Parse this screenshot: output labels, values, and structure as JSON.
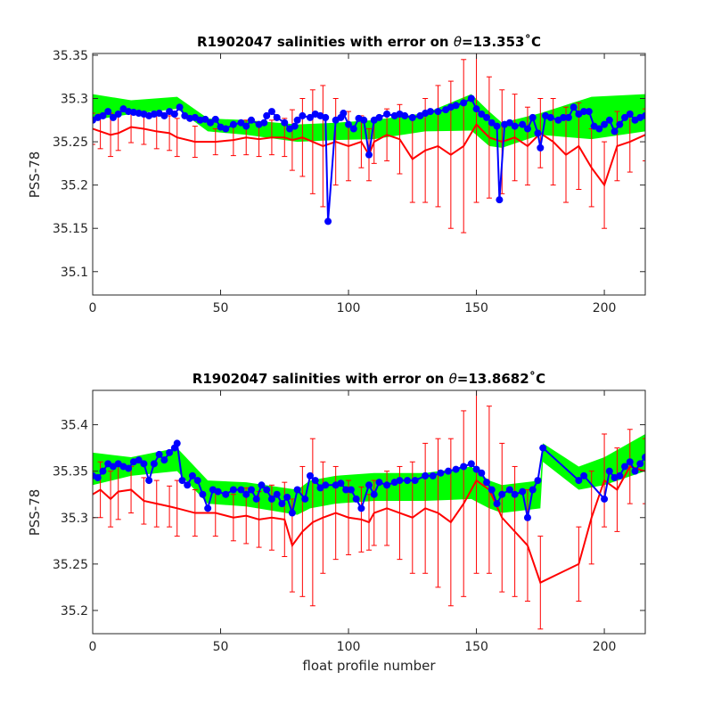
{
  "figure": {
    "xlabel": "float profile number"
  },
  "chart_data": [
    {
      "type": "line",
      "title": "R1902047 salinities with error on θ=13.353˚C",
      "title_parts": {
        "prefix": "R1902047 salinities with error on ",
        "theta": "θ",
        "suffix": "=13.353˚C"
      },
      "xlabel": "",
      "ylabel": "PSS-78",
      "xlim": [
        0,
        216
      ],
      "ylim": [
        35.073,
        35.352
      ],
      "xticks": [
        0,
        50,
        100,
        150,
        200
      ],
      "yticks": [
        35.1,
        35.15,
        35.2,
        35.25,
        35.3,
        35.35
      ],
      "ytick_labels": [
        "35.1",
        "35.15",
        "35.2",
        "35.25",
        "35.3",
        "35.35"
      ],
      "grid": false,
      "colors": {
        "mapped_band": "#00ff00",
        "float_data": "#ff0000",
        "calibrated": "#0000ff"
      },
      "series": [
        {
          "role": "mapped-band",
          "x": [
            0,
            15,
            33,
            45,
            60,
            80,
            95,
            110,
            130,
            148,
            155,
            160,
            175,
            195,
            216
          ],
          "y_low": [
            35.275,
            35.282,
            35.288,
            35.262,
            35.258,
            35.25,
            35.252,
            35.253,
            35.262,
            35.263,
            35.245,
            35.243,
            35.258,
            35.253,
            35.262
          ],
          "y_high": [
            35.305,
            35.298,
            35.302,
            35.277,
            35.275,
            35.27,
            35.272,
            35.275,
            35.283,
            35.305,
            35.285,
            35.272,
            35.283,
            35.302,
            35.305
          ]
        },
        {
          "role": "float-data",
          "x": [
            0,
            3,
            7,
            10,
            15,
            20,
            25,
            30,
            33,
            40,
            48,
            55,
            60,
            65,
            70,
            75,
            78,
            82,
            86,
            90,
            95,
            100,
            105,
            108,
            110,
            115,
            120,
            125,
            130,
            135,
            140,
            145,
            150,
            155,
            160,
            165,
            170,
            175,
            180,
            185,
            190,
            195,
            200,
            205,
            210,
            216
          ],
          "y": [
            35.265,
            35.262,
            35.258,
            35.26,
            35.267,
            35.265,
            35.262,
            35.26,
            35.255,
            35.25,
            35.25,
            35.252,
            35.255,
            35.253,
            35.255,
            35.255,
            35.252,
            35.255,
            35.25,
            35.245,
            35.25,
            35.245,
            35.25,
            35.235,
            35.25,
            35.258,
            35.253,
            35.23,
            35.24,
            35.245,
            35.235,
            35.245,
            35.27,
            35.255,
            35.25,
            35.255,
            35.245,
            35.26,
            35.25,
            35.235,
            35.245,
            35.22,
            35.2,
            35.245,
            35.25,
            35.258
          ],
          "error": [
            0.018,
            0.02,
            0.025,
            0.02,
            0.018,
            0.018,
            0.02,
            0.02,
            0.022,
            0.018,
            0.015,
            0.018,
            0.02,
            0.02,
            0.02,
            0.022,
            0.035,
            0.045,
            0.06,
            0.07,
            0.05,
            0.04,
            0.03,
            0.03,
            0.025,
            0.03,
            0.04,
            0.05,
            0.06,
            0.07,
            0.085,
            0.1,
            0.09,
            0.07,
            0.06,
            0.05,
            0.045,
            0.04,
            0.05,
            0.055,
            0.05,
            0.045,
            0.05,
            0.04,
            0.035,
            0.03
          ]
        },
        {
          "role": "calibrated",
          "x": [
            0,
            2,
            4,
            6,
            8,
            10,
            12,
            14,
            16,
            18,
            20,
            22,
            24,
            26,
            28,
            30,
            32,
            34,
            36,
            38,
            40,
            42,
            44,
            46,
            48,
            50,
            52,
            55,
            58,
            60,
            62,
            65,
            67,
            68,
            70,
            72,
            75,
            77,
            79,
            80,
            82,
            85,
            87,
            89,
            91,
            92,
            95,
            97,
            98,
            100,
            102,
            104,
            106,
            108,
            110,
            112,
            115,
            118,
            120,
            122,
            125,
            128,
            130,
            132,
            135,
            138,
            140,
            142,
            145,
            148,
            150,
            152,
            154,
            156,
            158,
            159,
            161,
            163,
            165,
            168,
            170,
            172,
            174,
            175,
            177,
            179,
            182,
            184,
            186,
            188,
            190,
            192,
            194,
            196,
            198,
            200,
            202,
            204,
            206,
            208,
            210,
            212,
            214,
            216
          ],
          "y": [
            35.275,
            35.278,
            35.28,
            35.285,
            35.278,
            35.282,
            35.288,
            35.285,
            35.284,
            35.283,
            35.282,
            35.28,
            35.282,
            35.283,
            35.28,
            35.285,
            35.282,
            35.29,
            35.28,
            35.277,
            35.278,
            35.275,
            35.276,
            35.272,
            35.276,
            35.267,
            35.265,
            35.27,
            35.272,
            35.268,
            35.275,
            35.27,
            35.272,
            35.28,
            35.285,
            35.278,
            35.272,
            35.265,
            35.268,
            35.275,
            35.28,
            35.278,
            35.282,
            35.28,
            35.278,
            35.158,
            35.275,
            35.278,
            35.283,
            35.27,
            35.265,
            35.277,
            35.275,
            35.235,
            35.275,
            35.278,
            35.282,
            35.28,
            35.282,
            35.28,
            35.278,
            35.28,
            35.283,
            35.285,
            35.285,
            35.287,
            35.29,
            35.292,
            35.295,
            35.3,
            35.288,
            35.282,
            35.278,
            35.272,
            35.268,
            35.183,
            35.27,
            35.272,
            35.268,
            35.27,
            35.265,
            35.278,
            35.26,
            35.243,
            35.28,
            35.278,
            35.275,
            35.278,
            35.278,
            35.29,
            35.282,
            35.285,
            35.285,
            35.268,
            35.265,
            35.27,
            35.275,
            35.262,
            35.27,
            35.278,
            35.282,
            35.275,
            35.278,
            35.28
          ]
        }
      ]
    },
    {
      "type": "line",
      "title": "R1902047 salinities with error on θ=13.8682˚C",
      "title_parts": {
        "prefix": "R1902047 salinities with error on ",
        "theta": "θ",
        "suffix": "=13.8682˚C"
      },
      "xlabel": "float profile number",
      "ylabel": "PSS-78",
      "xlim": [
        0,
        216
      ],
      "ylim": [
        35.175,
        35.437
      ],
      "xticks": [
        0,
        50,
        100,
        150,
        200
      ],
      "yticks": [
        35.2,
        35.25,
        35.3,
        35.35,
        35.4
      ],
      "ytick_labels": [
        "35.2",
        "35.25",
        "35.3",
        "35.35",
        "35.4"
      ],
      "grid": false,
      "colors": {
        "mapped_band": "#00ff00",
        "float_data": "#ff0000",
        "calibrated": "#0000ff"
      },
      "series": [
        {
          "role": "mapped-band",
          "x": [
            0,
            15,
            33,
            45,
            60,
            80,
            85,
            95,
            110,
            130,
            148,
            155,
            160,
            175,
            176,
            190,
            200,
            216
          ],
          "y_low": [
            35.335,
            35.345,
            35.35,
            35.315,
            35.312,
            35.303,
            35.31,
            35.315,
            35.318,
            35.318,
            35.32,
            35.31,
            35.305,
            35.31,
            35.36,
            35.33,
            35.335,
            35.35
          ],
          "y_high": [
            35.37,
            35.365,
            35.375,
            35.34,
            35.338,
            35.33,
            35.34,
            35.345,
            35.348,
            35.348,
            35.355,
            35.34,
            35.335,
            35.34,
            35.38,
            35.355,
            35.365,
            35.39
          ]
        },
        {
          "role": "float-data",
          "x": [
            0,
            3,
            7,
            10,
            15,
            20,
            25,
            30,
            33,
            40,
            48,
            55,
            60,
            65,
            70,
            75,
            78,
            82,
            86,
            90,
            95,
            100,
            105,
            108,
            110,
            115,
            120,
            125,
            130,
            135,
            140,
            145,
            150,
            155,
            160,
            165,
            170,
            175,
            190,
            195,
            200,
            205,
            210,
            216
          ],
          "y": [
            35.325,
            35.33,
            35.32,
            35.328,
            35.33,
            35.318,
            35.315,
            35.312,
            35.31,
            35.305,
            35.305,
            35.3,
            35.302,
            35.298,
            35.3,
            35.298,
            35.27,
            35.285,
            35.295,
            35.3,
            35.305,
            35.3,
            35.298,
            35.295,
            35.305,
            35.31,
            35.305,
            35.3,
            35.31,
            35.305,
            35.295,
            35.315,
            35.34,
            35.33,
            35.3,
            35.285,
            35.27,
            35.23,
            35.25,
            35.3,
            35.34,
            35.33,
            35.355,
            35.35
          ],
          "error": [
            0.025,
            0.03,
            0.03,
            0.03,
            0.025,
            0.025,
            0.025,
            0.022,
            0.03,
            0.025,
            0.025,
            0.025,
            0.03,
            0.03,
            0.035,
            0.04,
            0.05,
            0.07,
            0.09,
            0.06,
            0.05,
            0.04,
            0.035,
            0.03,
            0.035,
            0.04,
            0.05,
            0.06,
            0.07,
            0.08,
            0.09,
            0.1,
            0.1,
            0.09,
            0.08,
            0.07,
            0.06,
            0.05,
            0.04,
            0.05,
            0.05,
            0.045,
            0.04,
            0.035
          ]
        },
        {
          "role": "calibrated",
          "x": [
            0,
            2,
            4,
            6,
            8,
            10,
            12,
            14,
            16,
            18,
            20,
            22,
            24,
            26,
            28,
            30,
            32,
            33,
            35,
            37,
            39,
            41,
            43,
            45,
            47,
            49,
            52,
            55,
            58,
            60,
            62,
            64,
            66,
            68,
            70,
            72,
            74,
            76,
            78,
            80,
            83,
            85,
            87,
            89,
            91,
            95,
            97,
            99,
            101,
            103,
            105,
            108,
            110,
            112,
            115,
            118,
            120,
            123,
            126,
            130,
            133,
            136,
            139,
            142,
            145,
            148,
            150,
            152,
            154,
            156,
            158,
            160,
            163,
            165,
            168,
            170,
            172,
            174,
            176,
            190,
            192,
            200,
            202,
            204,
            206,
            208,
            210,
            212,
            214,
            216
          ],
          "y": [
            35.345,
            35.343,
            35.35,
            35.358,
            35.355,
            35.358,
            35.355,
            35.353,
            35.36,
            35.362,
            35.358,
            35.34,
            35.358,
            35.368,
            35.362,
            35.37,
            35.375,
            35.38,
            35.34,
            35.335,
            35.345,
            35.34,
            35.325,
            35.31,
            35.33,
            35.328,
            35.325,
            35.33,
            35.33,
            35.325,
            35.33,
            35.32,
            35.335,
            35.33,
            35.32,
            35.325,
            35.315,
            35.322,
            35.305,
            35.33,
            35.32,
            35.345,
            35.34,
            35.332,
            35.335,
            35.335,
            35.337,
            35.33,
            35.33,
            35.32,
            35.31,
            35.335,
            35.325,
            35.338,
            35.335,
            35.338,
            35.34,
            35.34,
            35.34,
            35.345,
            35.345,
            35.348,
            35.35,
            35.352,
            35.355,
            35.358,
            35.352,
            35.348,
            35.338,
            35.33,
            35.315,
            35.325,
            35.33,
            35.325,
            35.328,
            35.3,
            35.33,
            35.34,
            35.375,
            35.34,
            35.345,
            35.32,
            35.35,
            35.343,
            35.345,
            35.355,
            35.36,
            35.35,
            35.358,
            35.365
          ]
        }
      ]
    }
  ]
}
